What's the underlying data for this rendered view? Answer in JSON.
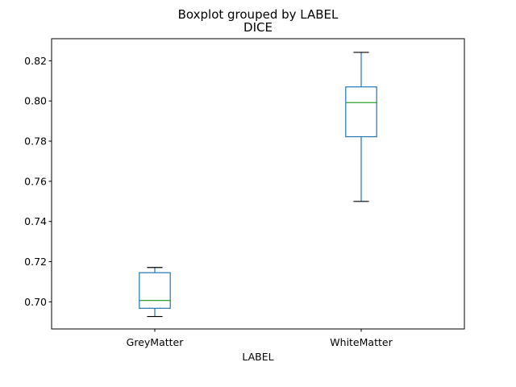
{
  "chart_data": {
    "type": "boxplot",
    "suptitle": "Boxplot grouped by LABEL",
    "title": "DICE",
    "xlabel": "LABEL",
    "ylabel": "",
    "ylim": [
      0.6865,
      0.831
    ],
    "yticks": [
      0.7,
      0.72,
      0.74,
      0.76,
      0.78,
      0.8,
      0.82
    ],
    "ytick_labels": [
      "0.70",
      "0.72",
      "0.74",
      "0.76",
      "0.78",
      "0.80",
      "0.82"
    ],
    "grid": false,
    "legend": "none",
    "categories": [
      "GreyMatter",
      "WhiteMatter"
    ],
    "boxes": [
      {
        "category": "GreyMatter",
        "whisker_low": 0.6927,
        "q1": 0.6968,
        "median": 0.7007,
        "q3": 0.7145,
        "whisker_high": 0.7171
      },
      {
        "category": "WhiteMatter",
        "whisker_low": 0.75,
        "q1": 0.7822,
        "median": 0.7992,
        "q3": 0.807,
        "whisker_high": 0.8242
      }
    ],
    "colors": {
      "box": "#1f77b4",
      "median": "#2ca02c",
      "cap": "#000000",
      "axis": "#000000"
    }
  }
}
